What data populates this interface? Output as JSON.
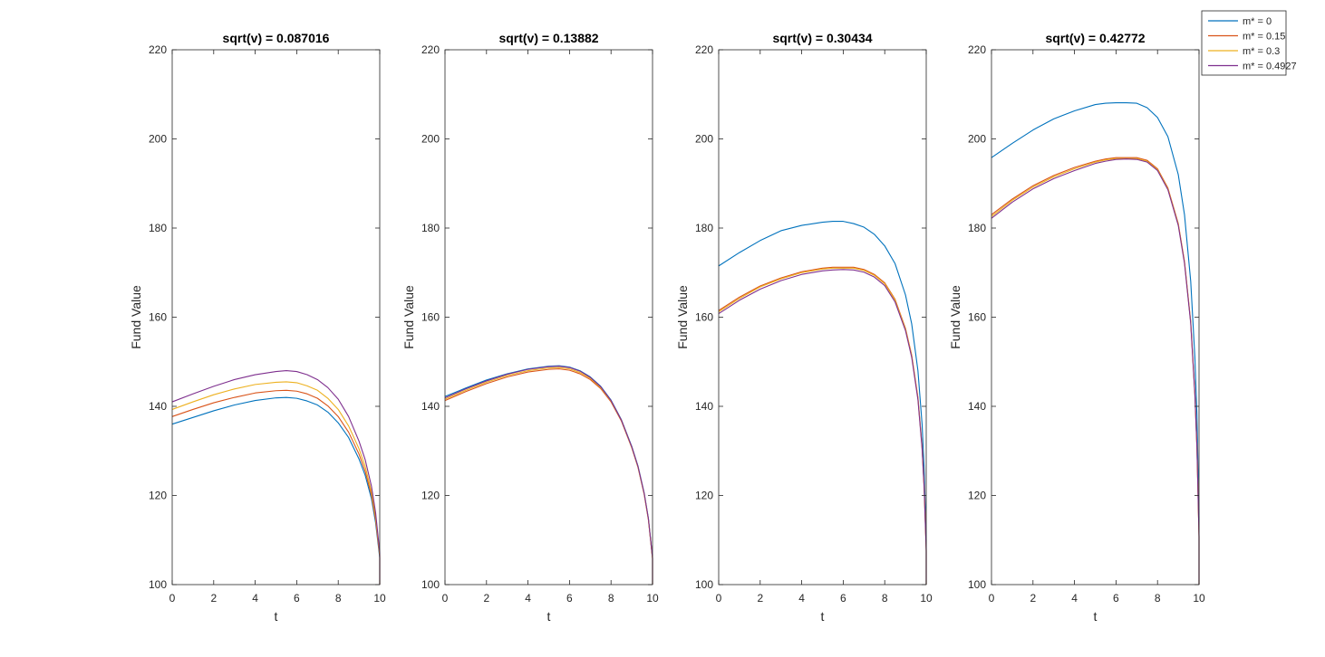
{
  "chart_data": [
    {
      "type": "line",
      "title": "sqrt(v) = 0.087016",
      "xlabel": "t",
      "ylabel": "Fund Value",
      "xlim": [
        0,
        10
      ],
      "ylim": [
        100,
        220
      ],
      "xticks": [
        0,
        2,
        4,
        6,
        8,
        10
      ],
      "yticks": [
        100,
        120,
        140,
        160,
        180,
        200,
        220
      ],
      "grid": false,
      "series": [
        {
          "name": "m* = 0",
          "color": "#0072BD",
          "x": [
            0,
            1,
            2,
            3,
            4,
            5,
            5.5,
            6,
            6.5,
            7,
            7.5,
            8,
            8.5,
            9,
            9.3,
            9.6,
            9.8,
            10,
            10
          ],
          "y": [
            136,
            137.5,
            139,
            140.3,
            141.3,
            141.9,
            142,
            141.8,
            141.2,
            140.3,
            138.7,
            136.3,
            133,
            128.2,
            124.5,
            119.3,
            113.9,
            106,
            100
          ]
        },
        {
          "name": "m* = 0.15",
          "color": "#D95319",
          "x": [
            0,
            1,
            2,
            3,
            4,
            5,
            5.5,
            6,
            6.5,
            7,
            7.5,
            8,
            8.5,
            9,
            9.3,
            9.6,
            9.8,
            10,
            10
          ],
          "y": [
            137.7,
            139.3,
            140.8,
            142,
            143,
            143.5,
            143.6,
            143.4,
            142.8,
            141.8,
            140.1,
            137.7,
            134.2,
            129.3,
            125.4,
            120.1,
            114.6,
            106.4,
            100
          ]
        },
        {
          "name": "m* = 0.3",
          "color": "#EDB120",
          "x": [
            0,
            1,
            2,
            3,
            4,
            5,
            5.5,
            6,
            6.5,
            7,
            7.5,
            8,
            8.5,
            9,
            9.3,
            9.6,
            9.8,
            10,
            10
          ],
          "y": [
            139.3,
            141,
            142.6,
            143.9,
            144.9,
            145.4,
            145.5,
            145.3,
            144.6,
            143.6,
            141.8,
            139.3,
            135.6,
            130.5,
            126.5,
            120.9,
            115.3,
            106.8,
            100
          ]
        },
        {
          "name": "m* = 0.4927",
          "color": "#7E2F8E",
          "x": [
            0,
            1,
            2,
            3,
            4,
            5,
            5.5,
            6,
            6.5,
            7,
            7.5,
            8,
            8.5,
            9,
            9.3,
            9.6,
            9.8,
            10,
            10
          ],
          "y": [
            141,
            142.8,
            144.5,
            146,
            147.1,
            147.8,
            148,
            147.8,
            147.1,
            146,
            144.2,
            141.6,
            137.7,
            132.2,
            128,
            122.1,
            116.2,
            107.2,
            100
          ]
        }
      ]
    },
    {
      "type": "line",
      "title": "sqrt(v) = 0.13882",
      "xlabel": "t",
      "ylabel": "Fund Value",
      "xlim": [
        0,
        10
      ],
      "ylim": [
        100,
        220
      ],
      "xticks": [
        0,
        2,
        4,
        6,
        8,
        10
      ],
      "yticks": [
        100,
        120,
        140,
        160,
        180,
        200,
        220
      ],
      "grid": false,
      "series": [
        {
          "name": "m* = 0",
          "color": "#0072BD",
          "x": [
            0,
            1,
            2,
            3,
            4,
            5,
            5.5,
            6,
            6.5,
            7,
            7.5,
            8,
            8.5,
            9,
            9.3,
            9.6,
            9.8,
            10,
            10
          ],
          "y": [
            142.2,
            144.1,
            145.9,
            147.3,
            148.4,
            149,
            149.1,
            148.8,
            148,
            146.6,
            144.5,
            141.4,
            137,
            131,
            126.6,
            120.5,
            114.9,
            106,
            100
          ]
        },
        {
          "name": "m* = 0.15",
          "color": "#D95319",
          "x": [
            0,
            1,
            2,
            3,
            4,
            5,
            5.5,
            6,
            6.5,
            7,
            7.5,
            8,
            8.5,
            9,
            9.3,
            9.6,
            9.8,
            10,
            10
          ],
          "y": [
            141.3,
            143.3,
            145.1,
            146.6,
            147.7,
            148.3,
            148.4,
            148.1,
            147.3,
            146,
            144,
            141,
            136.7,
            130.7,
            126.3,
            120.2,
            114.6,
            105.8,
            100
          ]
        },
        {
          "name": "m* = 0.3",
          "color": "#EDB120",
          "x": [
            0,
            1,
            2,
            3,
            4,
            5,
            5.5,
            6,
            6.5,
            7,
            7.5,
            8,
            8.5,
            9,
            9.3,
            9.6,
            9.8,
            10,
            10
          ],
          "y": [
            141.6,
            143.6,
            145.4,
            146.9,
            148,
            148.6,
            148.7,
            148.4,
            147.6,
            146.3,
            144.2,
            141.2,
            136.9,
            130.8,
            126.4,
            120.3,
            114.7,
            105.9,
            100
          ]
        },
        {
          "name": "m* = 0.4927",
          "color": "#7E2F8E",
          "x": [
            0,
            1,
            2,
            3,
            4,
            5,
            5.5,
            6,
            6.5,
            7,
            7.5,
            8,
            8.5,
            9,
            9.3,
            9.6,
            9.8,
            10,
            10
          ],
          "y": [
            141.9,
            143.9,
            145.7,
            147.2,
            148.3,
            148.9,
            149,
            148.7,
            147.9,
            146.5,
            144.4,
            141.3,
            136.9,
            130.9,
            126.5,
            120.4,
            114.8,
            106,
            100
          ]
        }
      ]
    },
    {
      "type": "line",
      "title": "sqrt(v) = 0.30434",
      "xlabel": "t",
      "ylabel": "Fund Value",
      "xlim": [
        0,
        10
      ],
      "ylim": [
        100,
        220
      ],
      "xticks": [
        0,
        2,
        4,
        6,
        8,
        10
      ],
      "yticks": [
        100,
        120,
        140,
        160,
        180,
        200,
        220
      ],
      "grid": false,
      "series": [
        {
          "name": "m* = 0",
          "color": "#0072BD",
          "x": [
            0,
            1,
            2,
            3,
            4,
            5,
            5.5,
            6,
            6.5,
            7,
            7.5,
            8,
            8.5,
            9,
            9.3,
            9.6,
            9.8,
            9.9,
            10,
            10
          ],
          "y": [
            171.5,
            174.5,
            177.2,
            179.4,
            180.6,
            181.3,
            181.5,
            181.5,
            181,
            180.2,
            178.6,
            176,
            172,
            165,
            158.5,
            148,
            136,
            126,
            110,
            100
          ]
        },
        {
          "name": "m* = 0.15",
          "color": "#D95319",
          "x": [
            0,
            1,
            2,
            3,
            4,
            5,
            5.5,
            6,
            6.5,
            7,
            7.5,
            8,
            8.5,
            9,
            9.3,
            9.6,
            9.8,
            9.9,
            10,
            10
          ],
          "y": [
            161.5,
            164.5,
            167,
            168.8,
            170.2,
            171,
            171.2,
            171.2,
            171.2,
            170.7,
            169.6,
            167.7,
            164,
            157.5,
            151.5,
            142,
            131,
            122,
            108,
            100
          ]
        },
        {
          "name": "m* = 0.3",
          "color": "#EDB120",
          "x": [
            0,
            1,
            2,
            3,
            4,
            5,
            5.5,
            6,
            6.5,
            7,
            7.5,
            8,
            8.5,
            9,
            9.3,
            9.6,
            9.8,
            9.9,
            10,
            10
          ],
          "y": [
            161.2,
            164.2,
            166.8,
            168.6,
            170,
            170.8,
            171,
            171,
            171,
            170.5,
            169.4,
            167.5,
            163.8,
            157.3,
            151.3,
            141.8,
            130.8,
            121.8,
            107.8,
            100
          ]
        },
        {
          "name": "m* = 0.4927",
          "color": "#7E2F8E",
          "x": [
            0,
            1,
            2,
            3,
            4,
            5,
            5.5,
            6,
            6.5,
            7,
            7.5,
            8,
            8.5,
            9,
            9.3,
            9.6,
            9.8,
            9.9,
            10,
            10
          ],
          "y": [
            160.8,
            163.8,
            166.3,
            168.2,
            169.6,
            170.4,
            170.6,
            170.7,
            170.6,
            170.1,
            169,
            167.1,
            163.4,
            157,
            151,
            141.5,
            130.5,
            121.5,
            107.5,
            100
          ]
        }
      ]
    },
    {
      "type": "line",
      "title": "sqrt(v) = 0.42772",
      "xlabel": "t",
      "ylabel": "Fund Value",
      "xlim": [
        0,
        10
      ],
      "ylim": [
        100,
        220
      ],
      "xticks": [
        0,
        2,
        4,
        6,
        8,
        10
      ],
      "yticks": [
        100,
        120,
        140,
        160,
        180,
        200,
        220
      ],
      "grid": false,
      "series": [
        {
          "name": "m* = 0",
          "color": "#0072BD",
          "x": [
            0,
            1,
            2,
            3,
            4,
            5,
            5.5,
            6,
            6.5,
            7,
            7.5,
            8,
            8.5,
            9,
            9.3,
            9.6,
            9.8,
            9.9,
            10,
            10
          ],
          "y": [
            195.8,
            199,
            202,
            204.5,
            206.3,
            207.7,
            208,
            208.1,
            208.1,
            208,
            207,
            204.8,
            200.5,
            192,
            183,
            168,
            151,
            138,
            115,
            100
          ]
        },
        {
          "name": "m* = 0.15",
          "color": "#D95319",
          "x": [
            0,
            1,
            2,
            3,
            4,
            5,
            5.5,
            6,
            6.5,
            7,
            7.5,
            8,
            8.5,
            9,
            9.3,
            9.6,
            9.8,
            9.9,
            10,
            10
          ],
          "y": [
            183,
            186.5,
            189.5,
            191.8,
            193.6,
            195,
            195.5,
            195.8,
            195.8,
            195.8,
            195.2,
            193.3,
            189,
            181,
            172.5,
            159,
            143,
            131,
            111,
            100
          ]
        },
        {
          "name": "m* = 0.3",
          "color": "#EDB120",
          "x": [
            0,
            1,
            2,
            3,
            4,
            5,
            5.5,
            6,
            6.5,
            7,
            7.5,
            8,
            8.5,
            9,
            9.3,
            9.6,
            9.8,
            9.9,
            10,
            10
          ],
          "y": [
            182.6,
            186.2,
            189.2,
            191.5,
            193.3,
            194.8,
            195.3,
            195.6,
            195.6,
            195.6,
            195,
            193.1,
            188.8,
            180.8,
            172.3,
            158.8,
            142.8,
            130.8,
            110.8,
            100
          ]
        },
        {
          "name": "m* = 0.4927",
          "color": "#7E2F8E",
          "x": [
            0,
            1,
            2,
            3,
            4,
            5,
            5.5,
            6,
            6.5,
            7,
            7.5,
            8,
            8.5,
            9,
            9.3,
            9.6,
            9.8,
            9.9,
            10,
            10
          ],
          "y": [
            182.2,
            185.8,
            188.8,
            191.1,
            192.9,
            194.5,
            195,
            195.4,
            195.5,
            195.4,
            194.8,
            192.9,
            188.6,
            180.6,
            172.1,
            158.6,
            142.6,
            130.6,
            110.6,
            100
          ]
        }
      ]
    }
  ],
  "legend": {
    "placement": "top-right",
    "entries": [
      {
        "label": "m* = 0",
        "color": "#0072BD"
      },
      {
        "label": "m* = 0.15",
        "color": "#D95319"
      },
      {
        "label": "m* = 0.3",
        "color": "#EDB120"
      },
      {
        "label": "m* = 0.4927",
        "color": "#7E2F8E"
      }
    ]
  }
}
